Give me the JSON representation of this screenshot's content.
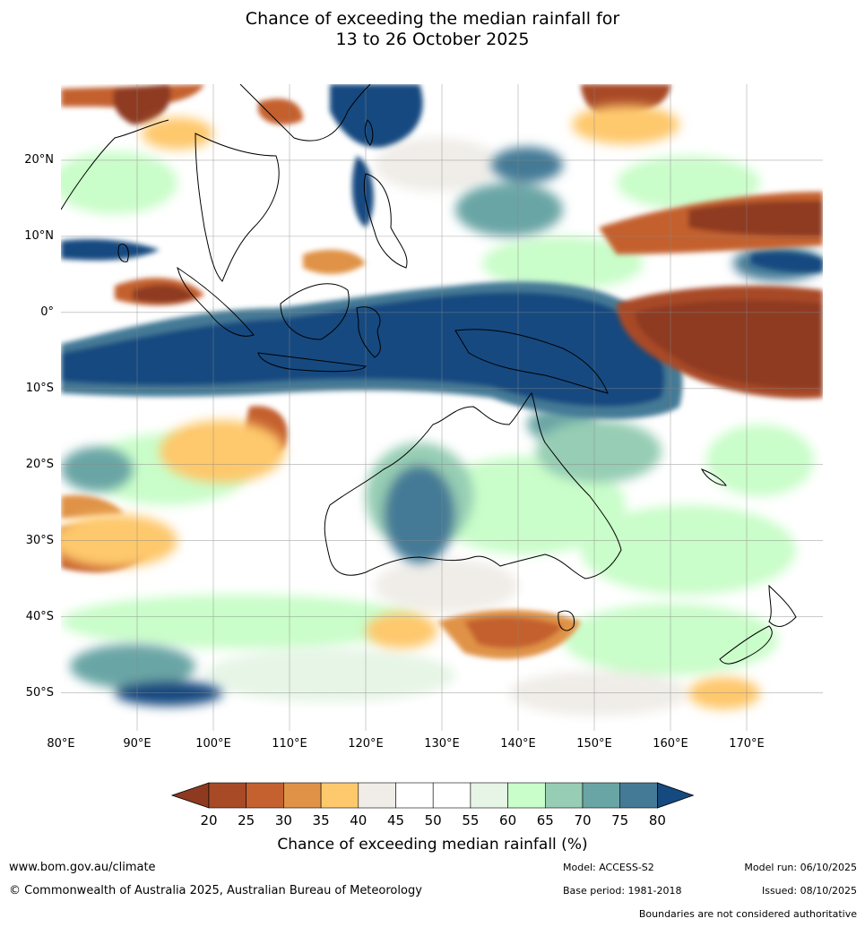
{
  "title": {
    "line1": "Chance of exceeding the median rainfall for",
    "line2": "13 to 26 October 2025"
  },
  "map": {
    "lat_labels": [
      "20°N",
      "10°N",
      "0°",
      "10°S",
      "20°S",
      "30°S",
      "40°S",
      "50°S"
    ],
    "lon_labels": [
      "80°E",
      "90°E",
      "100°E",
      "110°E",
      "120°E",
      "130°E",
      "140°E",
      "150°E",
      "160°E",
      "170°E"
    ],
    "extent": {
      "lon": [
        80,
        180
      ],
      "lat": [
        -55,
        30
      ]
    }
  },
  "legend": {
    "ticks": [
      "20",
      "25",
      "30",
      "35",
      "40",
      "45",
      "50",
      "55",
      "60",
      "65",
      "70",
      "75",
      "80"
    ],
    "colors": [
      "#8e3a20",
      "#a84a26",
      "#c4612f",
      "#e09346",
      "#fec86c",
      "#f0ede8",
      "#ffffff",
      "#ffffff",
      "#e6f5e6",
      "#c9fdc9",
      "#96cdb4",
      "#6aa5a5",
      "#457a96",
      "#144a80"
    ],
    "title": "Chance of exceeding median rainfall (%)"
  },
  "footer": {
    "website": "www.bom.gov.au/climate",
    "copyright": "© Commonwealth of Australia 2025, Australian Bureau of Meteorology",
    "model": "Model: ACCESS-S2",
    "base_period": "Base period: 1981-2018",
    "model_run": "Model run: 06/10/2025",
    "issued": "Issued: 08/10/2025",
    "disclaimer": "Boundaries are not considered authoritative"
  }
}
